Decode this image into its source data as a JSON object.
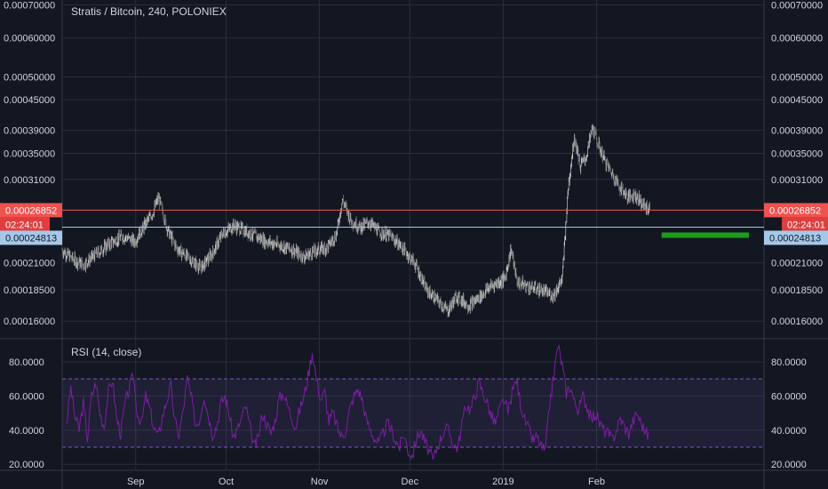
{
  "colors": {
    "background": "#131722",
    "grid": "#2a2e39",
    "text": "#d1d4dc",
    "candle_up": "#c8c8c8",
    "candle_down": "#7a7a7a",
    "price_line": "#ef5350",
    "level_line": "#a6c8e8",
    "timer_tag": "#e03e3e",
    "target_box": "#1c9c1c",
    "rsi_line": "#7b1fa2",
    "rsi_band": "#7e57c2"
  },
  "chart_data": [
    {
      "type": "candlestick",
      "title": "Stratis / Bitcoin, 240, POLONIEX",
      "ylim": [
        0.000148,
        0.000716
      ],
      "y_ticks": [
        "0.00070000",
        "0.00060000",
        "0.00050000",
        "0.00045000",
        "0.00039000",
        "0.00035000",
        "0.00031000",
        "0.00026852",
        "0.00024813",
        "0.00021000",
        "0.00018500",
        "0.00016000"
      ],
      "x_ticks": [
        "Sep",
        "Oct",
        "Nov",
        "Dec",
        "2019",
        "Feb"
      ],
      "last_price": "0.00026852",
      "countdown": "02:24:01",
      "level_price": "0.00024813",
      "close_path": [
        [
          "2018-08-07",
          0.000223
        ],
        [
          "2018-08-10",
          0.000215
        ],
        [
          "2018-08-14",
          0.000208
        ],
        [
          "2018-08-18",
          0.000218
        ],
        [
          "2018-08-22",
          0.000228
        ],
        [
          "2018-08-27",
          0.000238
        ],
        [
          "2018-08-31",
          0.000232
        ],
        [
          "2018-09-03",
          0.000248
        ],
        [
          "2018-09-06",
          0.000265
        ],
        [
          "2018-09-08",
          0.000285
        ],
        [
          "2018-09-11",
          0.000245
        ],
        [
          "2018-09-14",
          0.000225
        ],
        [
          "2018-09-18",
          0.000215
        ],
        [
          "2018-09-22",
          0.000205
        ],
        [
          "2018-09-26",
          0.00022
        ],
        [
          "2018-09-29",
          0.00024
        ],
        [
          "2018-10-03",
          0.00025
        ],
        [
          "2018-10-06",
          0.000245
        ],
        [
          "2018-10-10",
          0.000238
        ],
        [
          "2018-10-14",
          0.000232
        ],
        [
          "2018-10-18",
          0.000228
        ],
        [
          "2018-10-22",
          0.000224
        ],
        [
          "2018-10-26",
          0.000216
        ],
        [
          "2018-10-30",
          0.000222
        ],
        [
          "2018-11-03",
          0.000226
        ],
        [
          "2018-11-06",
          0.00024
        ],
        [
          "2018-11-08",
          0.000282
        ],
        [
          "2018-11-11",
          0.000255
        ],
        [
          "2018-11-14",
          0.000248
        ],
        [
          "2018-11-17",
          0.000254
        ],
        [
          "2018-11-20",
          0.000243
        ],
        [
          "2018-11-24",
          0.000238
        ],
        [
          "2018-11-28",
          0.000225
        ],
        [
          "2018-12-02",
          0.00021
        ],
        [
          "2018-12-06",
          0.000185
        ],
        [
          "2018-12-10",
          0.000175
        ],
        [
          "2018-12-13",
          0.000168
        ],
        [
          "2018-12-16",
          0.00018
        ],
        [
          "2018-12-20",
          0.000172
        ],
        [
          "2018-12-24",
          0.00018
        ],
        [
          "2018-12-27",
          0.000188
        ],
        [
          "2019-01-01",
          0.000195
        ],
        [
          "2019-01-03",
          0.000225
        ],
        [
          "2019-01-05",
          0.000192
        ],
        [
          "2019-01-09",
          0.000188
        ],
        [
          "2019-01-13",
          0.000185
        ],
        [
          "2019-01-17",
          0.00018
        ],
        [
          "2019-01-20",
          0.000195
        ],
        [
          "2019-01-22",
          0.0003
        ],
        [
          "2019-01-24",
          0.00038
        ],
        [
          "2019-01-26",
          0.00033
        ],
        [
          "2019-01-28",
          0.000345
        ],
        [
          "2019-01-30",
          0.000395
        ],
        [
          "2019-02-01",
          0.000365
        ],
        [
          "2019-02-03",
          0.00034
        ],
        [
          "2019-02-06",
          0.000315
        ],
        [
          "2019-02-08",
          0.0003
        ],
        [
          "2019-02-11",
          0.000285
        ],
        [
          "2019-02-13",
          0.00029
        ],
        [
          "2019-02-16",
          0.000275
        ],
        [
          "2019-02-18",
          0.000269
        ]
      ],
      "forecast_box": {
        "start": "2019-02-22",
        "end": "2019-03-23",
        "low": 0.000236,
        "high": 0.000242
      }
    },
    {
      "type": "line",
      "title": "RSI (14, close)",
      "ylim": [
        17,
        93
      ],
      "y_ticks": [
        "80.0000",
        "60.0000",
        "40.0000",
        "20.0000"
      ],
      "bands": [
        30,
        70
      ],
      "values": [
        45,
        65,
        48,
        40,
        56,
        35,
        60,
        68,
        50,
        42,
        62,
        70,
        47,
        38,
        55,
        64,
        72,
        50,
        44,
        60,
        52,
        41,
        36,
        48,
        57,
        66,
        45,
        37,
        52,
        70,
        58,
        43,
        47,
        61,
        49,
        38,
        42,
        55,
        60,
        50,
        36,
        40,
        47,
        54,
        42,
        30,
        35,
        50,
        44,
        38,
        45,
        58,
        62,
        55,
        48,
        42,
        52,
        60,
        72,
        86,
        70,
        58,
        62,
        45,
        50,
        42,
        36,
        40,
        52,
        60,
        64,
        58,
        46,
        40,
        35,
        32,
        38,
        44,
        40,
        34,
        30,
        38,
        28,
        25,
        35,
        40,
        33,
        28,
        22,
        30,
        36,
        42,
        38,
        31,
        30,
        45,
        55,
        52,
        60,
        68,
        62,
        56,
        48,
        44,
        52,
        58,
        50,
        62,
        70,
        56,
        46,
        40,
        34,
        36,
        30,
        28,
        55,
        72,
        90,
        78,
        62,
        66,
        56,
        52,
        60,
        54,
        46,
        50,
        44,
        40,
        38,
        34,
        40,
        47,
        42,
        38,
        45,
        50,
        44,
        39,
        36
      ]
    }
  ]
}
